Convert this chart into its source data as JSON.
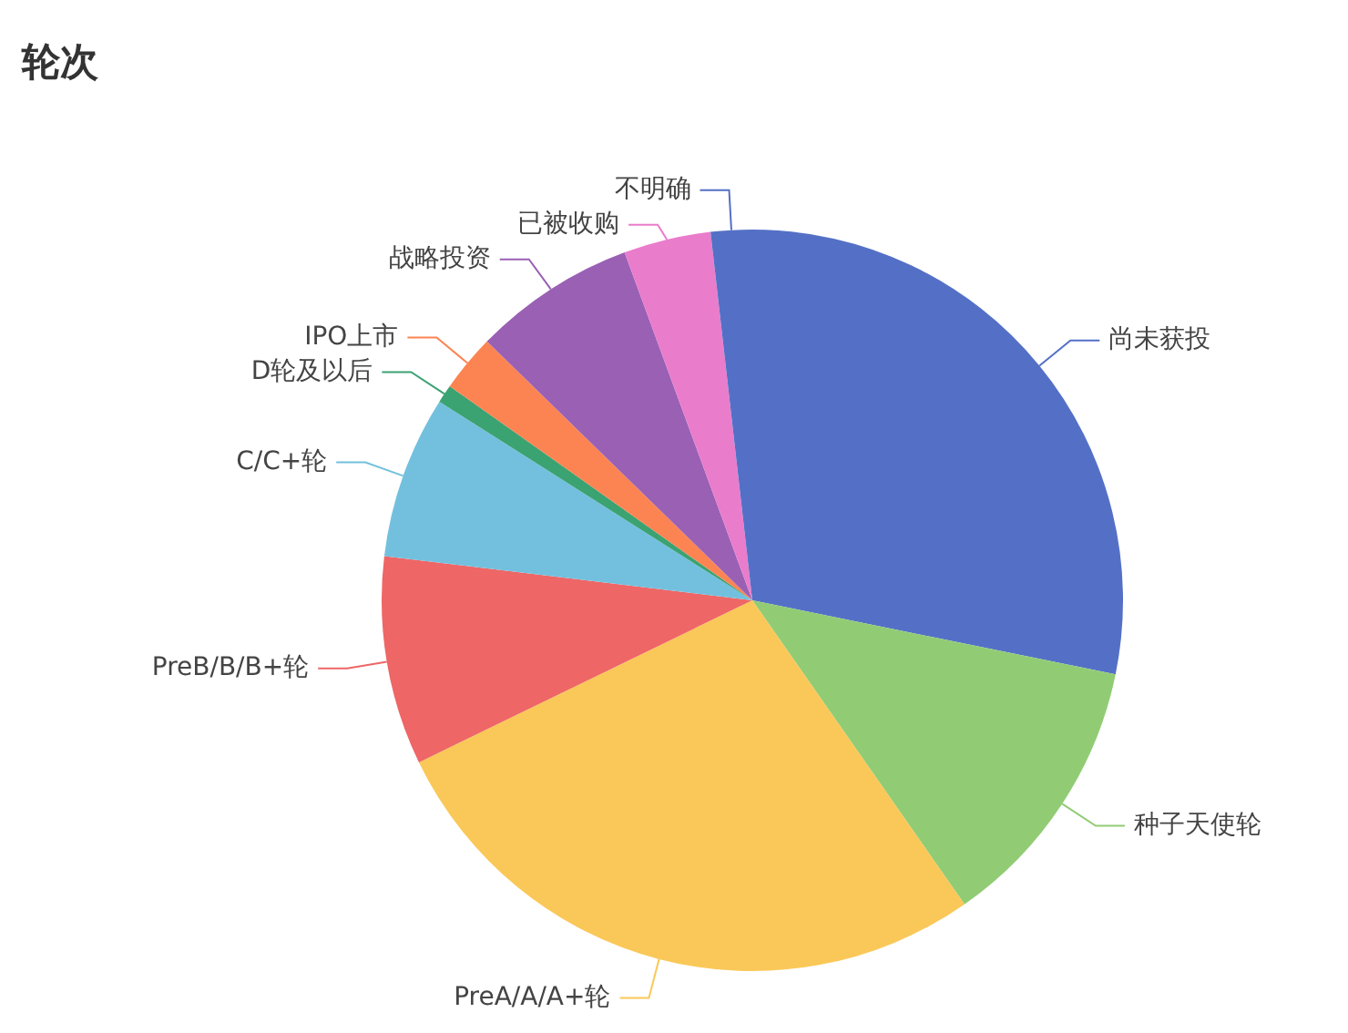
{
  "chart_data": {
    "type": "pie",
    "title": "轮次",
    "categories": [
      "尚未获投",
      "种子天使轮",
      "PreA/A/A+轮",
      "PreB/B/B+轮",
      "C/C+轮",
      "D轮及以后",
      "IPO上市",
      "战略投资",
      "已被收购",
      "不明确"
    ],
    "values": [
      28.2,
      12.1,
      27.5,
      9.1,
      7.1,
      0.8,
      2.5,
      7.1,
      3.8,
      1.8
    ],
    "colors": [
      "#5470c6",
      "#91cc75",
      "#fac858",
      "#ee6666",
      "#73c0de",
      "#3ba272",
      "#fc8452",
      "#9a60b4",
      "#ea7ccc",
      "#5470c6"
    ]
  }
}
